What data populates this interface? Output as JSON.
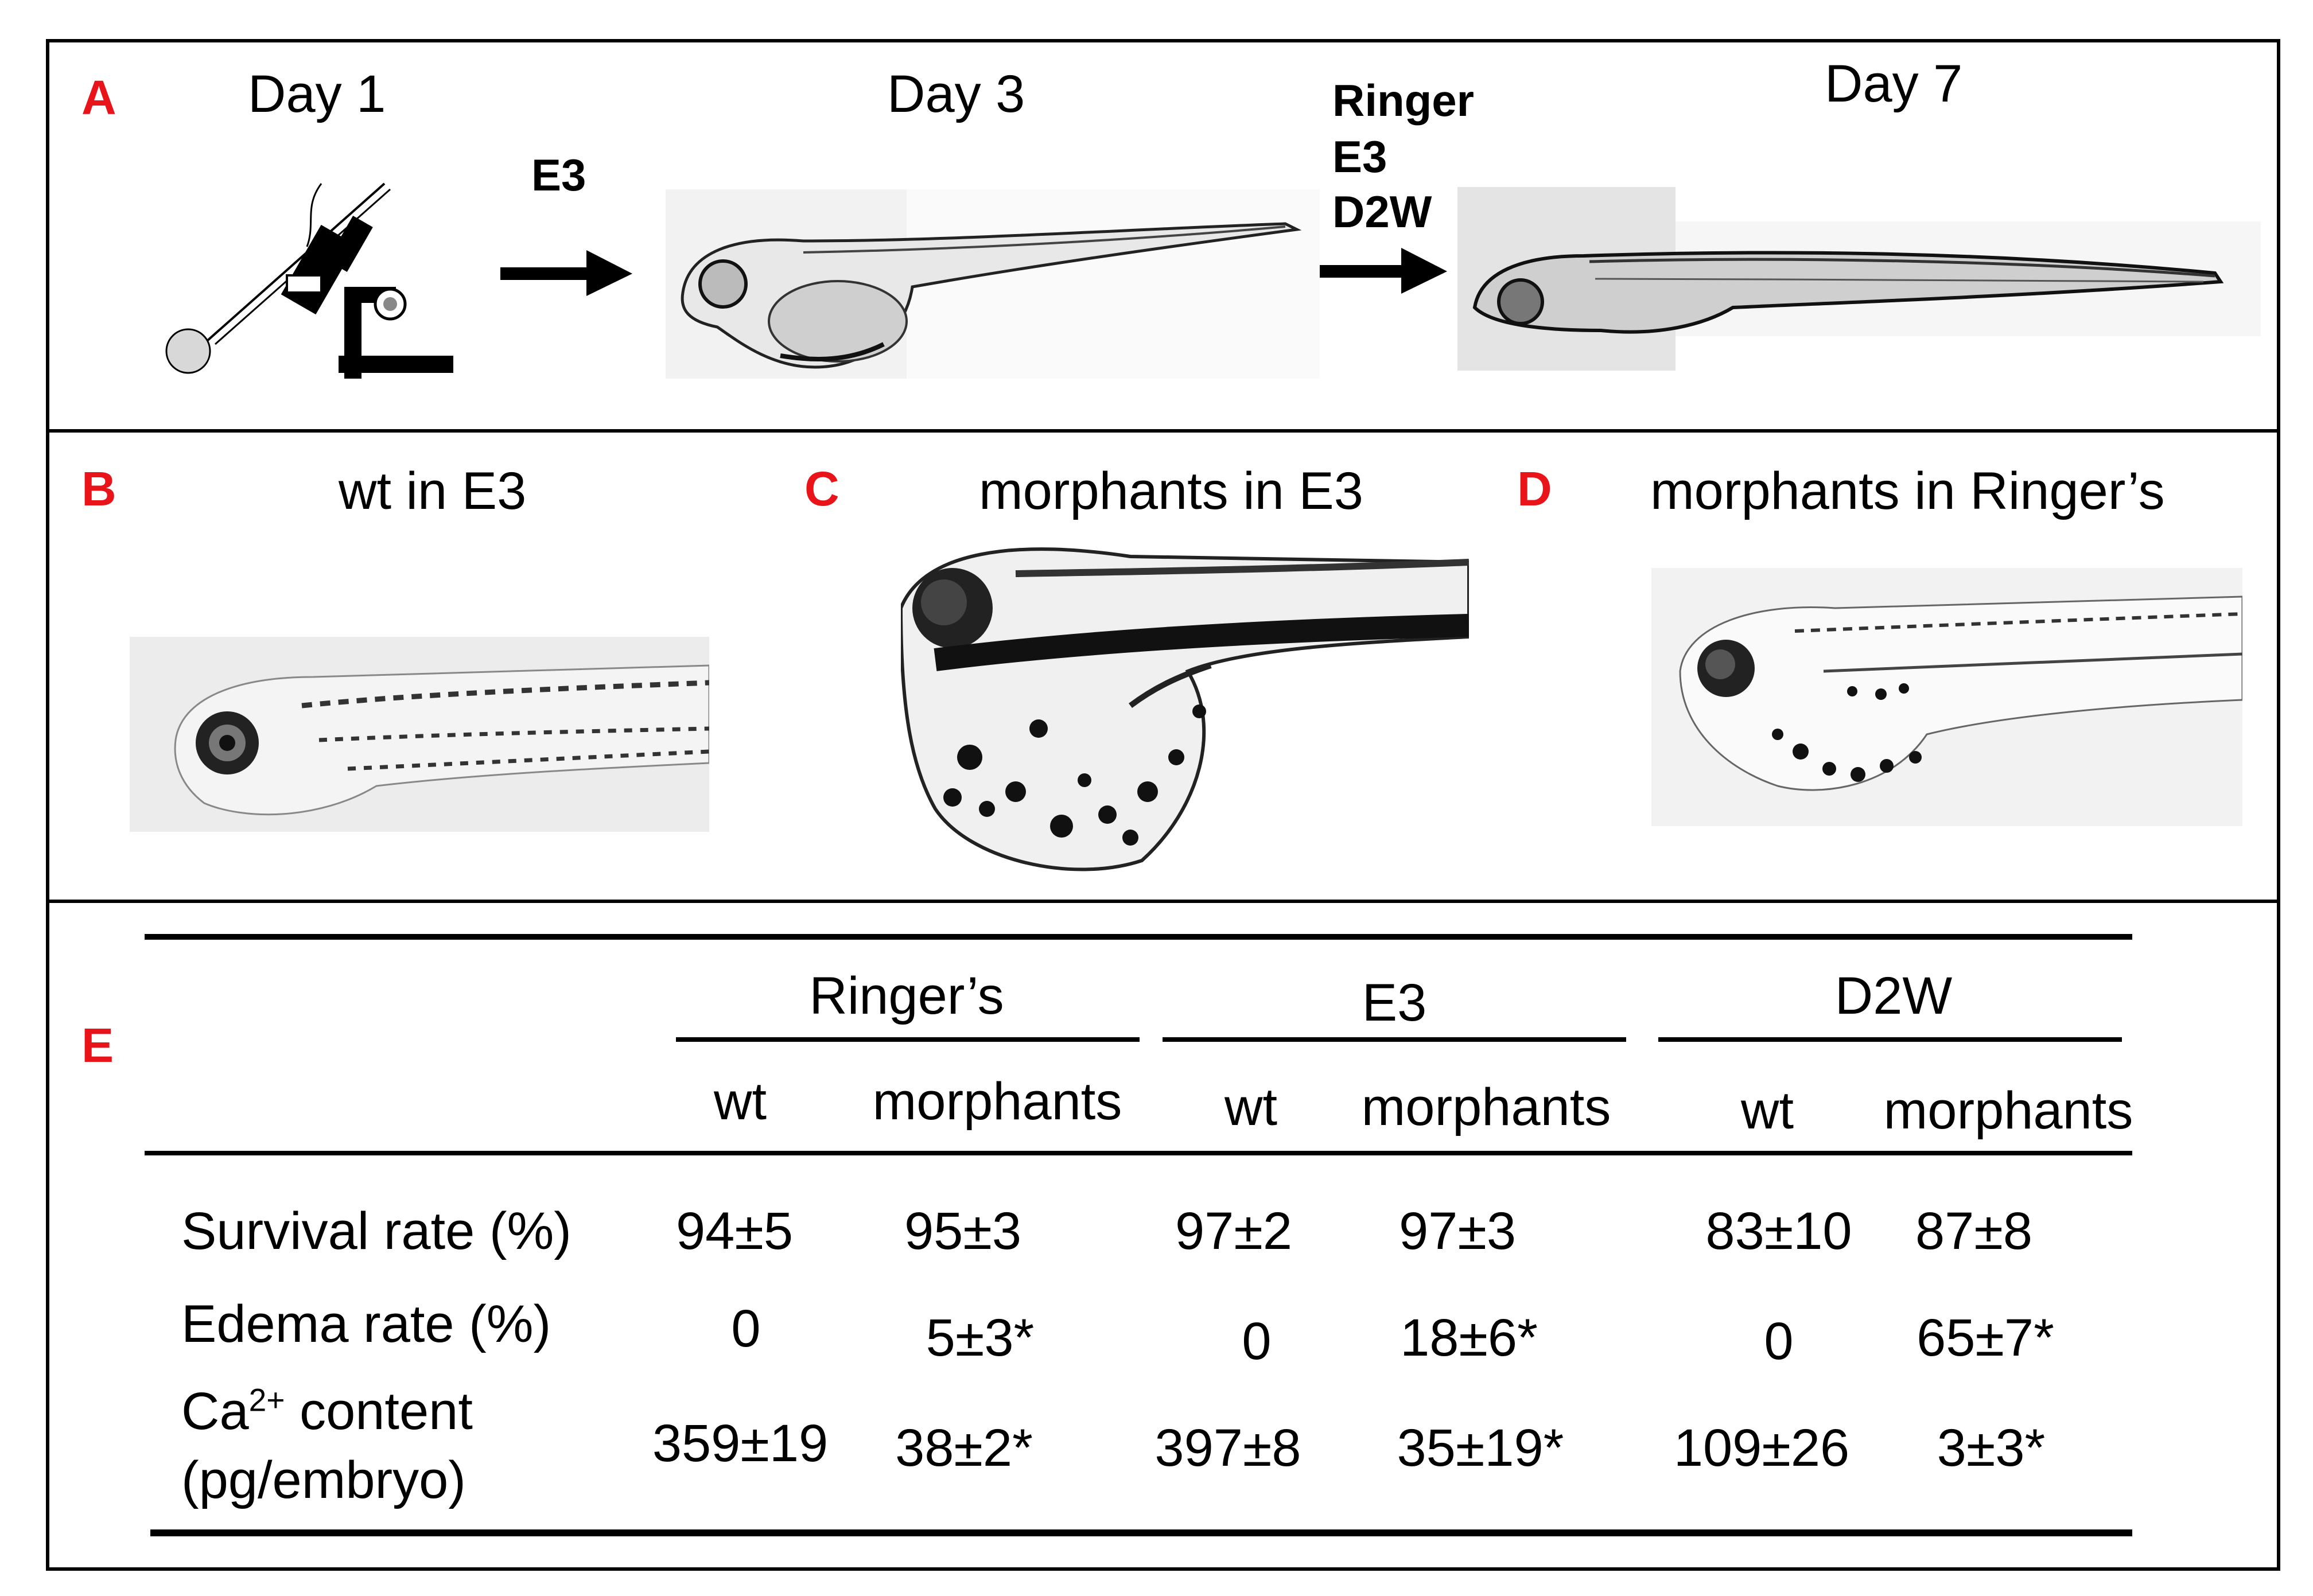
{
  "panel_a": {
    "letter": "A",
    "day1": "Day 1",
    "day3": "Day 3",
    "day7": "Day 7",
    "arrow1_label": "E3",
    "arrow2_labels": [
      "Ringer",
      "E3",
      "D2W"
    ],
    "microinjection_icon": "microinjection-apparatus-icon",
    "arrow_icon": "right-arrow-icon"
  },
  "panel_b": {
    "letter": "B",
    "caption": "wt in E3"
  },
  "panel_c": {
    "letter": "C",
    "caption": "morphants in E3"
  },
  "panel_d": {
    "letter": "D",
    "caption": "morphants in Ringer’s"
  },
  "panel_e": {
    "letter": "E",
    "groups": [
      "Ringer’s",
      "E3",
      "D2W"
    ],
    "subheaders": [
      "wt",
      "morphants",
      "wt",
      "morphants",
      "wt",
      "morphants"
    ],
    "rows": [
      {
        "label": "Survival rate (%)",
        "values": [
          "94±5",
          "95±3",
          "97±2",
          "97±3",
          "83±10",
          "87±8"
        ]
      },
      {
        "label": "Edema rate (%)",
        "values": [
          "0",
          "5±3*",
          "0",
          "18±6*",
          "0",
          "65±7*"
        ]
      },
      {
        "label_prefix": "Ca",
        "label_sup": "2+",
        "label_suffix": " content",
        "label_line2": "(pg/embryo)",
        "values": [
          "359±19",
          "38±2*",
          "397±8",
          "35±19*",
          "109±26",
          "3±3*"
        ]
      }
    ]
  },
  "colors": {
    "panel_letter": "#e8141a",
    "border": "#000000",
    "background": "#ffffff"
  }
}
